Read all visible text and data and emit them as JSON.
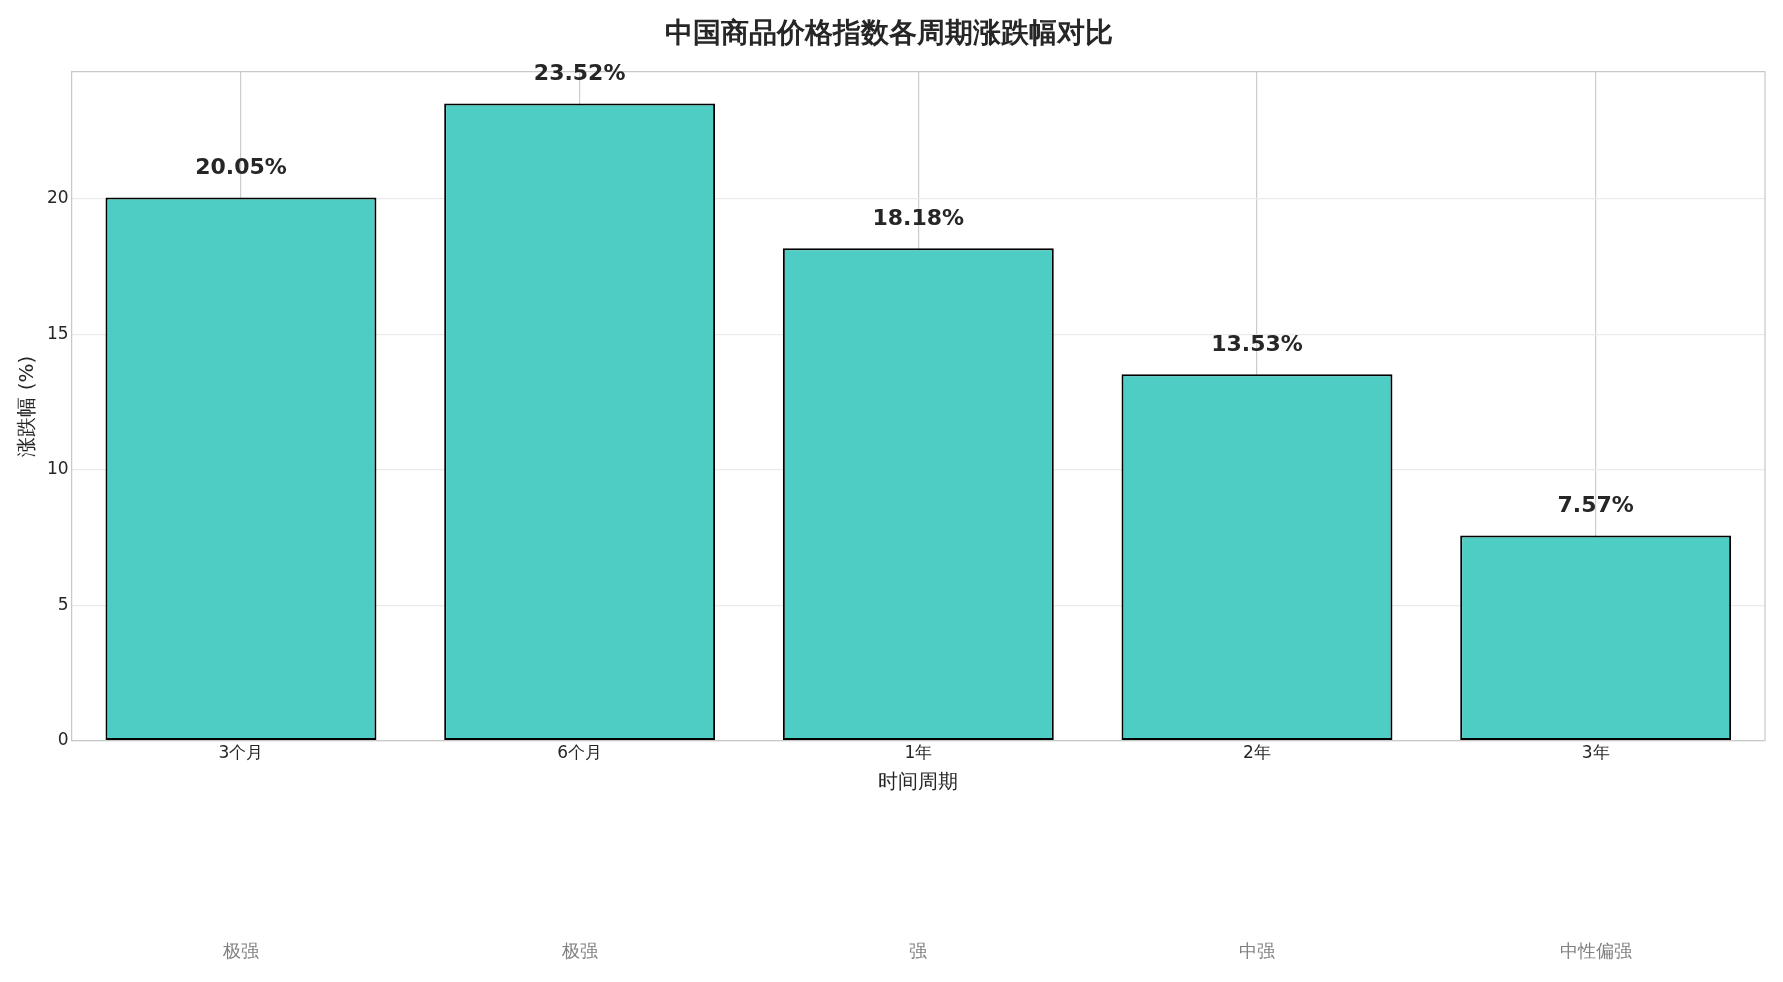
{
  "chart_data": {
    "type": "bar",
    "title": "中国商品价格指数各周期涨跌幅对比",
    "xlabel": "时间周期",
    "ylabel": "涨跌幅 (%)",
    "categories": [
      "3个月",
      "6个月",
      "1年",
      "2年",
      "3年"
    ],
    "values": [
      20.05,
      23.52,
      18.18,
      13.53,
      7.57
    ],
    "color": "#4ecdc4",
    "value_labels": [
      "20.05%",
      "23.52%",
      "18.18%",
      "13.53%",
      "7.57%"
    ],
    "ylim": [
      0,
      24.7
    ],
    "yticks": [
      0,
      5,
      10,
      15,
      20
    ],
    "grid": true,
    "annotations": [
      "极强",
      "极强",
      "强",
      "中强",
      "中性偏强"
    ]
  }
}
